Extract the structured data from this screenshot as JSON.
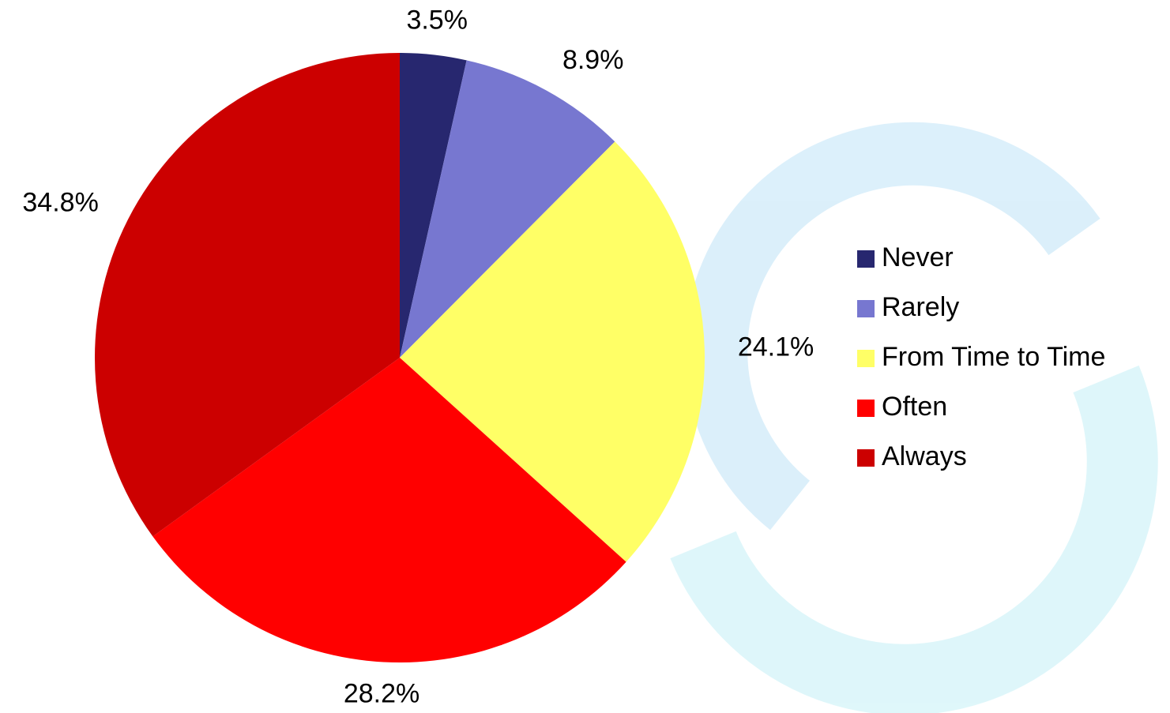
{
  "chart_data": {
    "type": "pie",
    "categories": [
      "Never",
      "Rarely",
      "From Time to Time",
      "Often",
      "Always"
    ],
    "values": [
      3.5,
      8.9,
      24.1,
      28.2,
      34.8
    ],
    "value_labels": [
      "3.5%",
      "8.9%",
      "24.1%",
      "28.2%",
      "34.8%"
    ],
    "colors": [
      "#27276f",
      "#7777d0",
      "#ffff66",
      "#ff0000",
      "#cc0000"
    ],
    "legend": "right"
  }
}
